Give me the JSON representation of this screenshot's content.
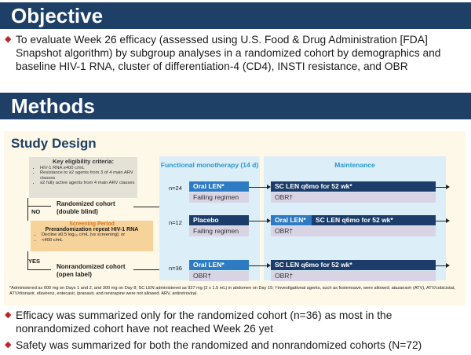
{
  "objective": {
    "heading": "Objective",
    "bullet": "To evaluate Week 26 efficacy (assessed using U.S. Food & Drug Administration [FDA] Snapshot algorithm) by subgroup analyses in a randomized cohort by demographics and baseline HIV-1 RNA, cluster of differentiation-4 (CD4), INSTI resistance, and OBR"
  },
  "methods": {
    "heading": "Methods",
    "bullets": [
      "Efficacy was summarized only for the randomized cohort (n=36) as most in the nonrandomized cohort have not reached Week 26 yet",
      "Safety was summarized for both the randomized and nonrandomized cohorts (N=72)"
    ]
  },
  "study_design": {
    "title": "Study Design",
    "eligibility": {
      "heading": "Key eligibility criteria:",
      "items": [
        "HIV-1 RNA ≥400 c/mL",
        "Resistance to ≥2 agents from 3 of 4 main ARV classes",
        "≤2 fully active agents from 4 main ARV classes"
      ]
    },
    "screening": {
      "heading": "Screening Period",
      "subheading": "Prerandomization repeat HIV-1 RNA",
      "items": [
        "Decline ≥0.5 log₁₀ c/mL (vs screening); or",
        "<400 c/mL"
      ]
    },
    "no_label": "NO",
    "yes_label": "YES",
    "randomized_cohort": "Randomized cohort (double blind)",
    "nonrandomized_cohort": "Nonrandomized cohort (open label)",
    "functional_monotherapy": "Functional monotherapy (14 d)",
    "maintenance": "Maintenance",
    "arms": {
      "n24": "n=24",
      "n12": "n=12",
      "n36": "n=36",
      "oral_len": "Oral LEN*",
      "placebo": "Placebo",
      "failing_regimen": "Failing regimen",
      "sc_len": "SC LEN q6mo for 52 wk*",
      "obr": "OBR†"
    },
    "footnote": "*Administered as 600 mg on Days 1 and 2, and 300 mg on Day 8; SC LEN administered as 927 mg (2 x 1.5 mL) in abdomen on Day 15; †Investigational agents, such as fostemsavir, were allowed; atazanavir (ATV), ATV/cobicistat, ATV/ritonavir, efavirenz, entecavir, ipranavir, and nevirapine were not allowed. ARV, antiretroviral."
  },
  "colors": {
    "banner": "#1e3f66",
    "bullet_dot": "#c0242b",
    "dark_blue": "#1c3d6a",
    "bright_blue": "#2d7bc3",
    "light_blue": "#dceef8",
    "lavender": "#d9d4e4",
    "orange": "#f7d39c",
    "panel": "#fdf8e7"
  }
}
